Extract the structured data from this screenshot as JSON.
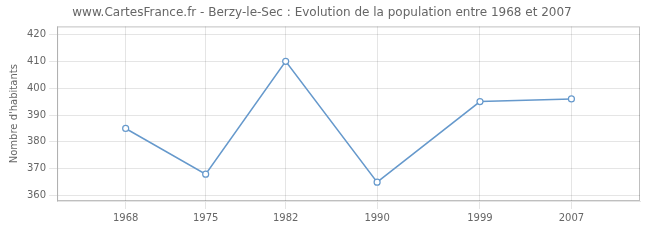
{
  "chart_data": {
    "type": "line",
    "title": "www.CartesFrance.fr - Berzy-le-Sec : Evolution de la population entre 1968 et 2007",
    "y_label": "Nombre d'habitants",
    "x": [
      1968,
      1975,
      1982,
      1990,
      1999,
      2007
    ],
    "values": [
      385,
      368,
      410,
      365,
      395,
      396
    ],
    "xlim": [
      1962,
      2013
    ],
    "ylim": [
      358,
      423
    ],
    "xticks": [
      1968,
      1975,
      1982,
      1990,
      1999,
      2007
    ],
    "yticks": [
      360,
      370,
      380,
      390,
      400,
      410,
      420
    ],
    "color": "#6699cc",
    "marker": "circle",
    "grid": true
  }
}
